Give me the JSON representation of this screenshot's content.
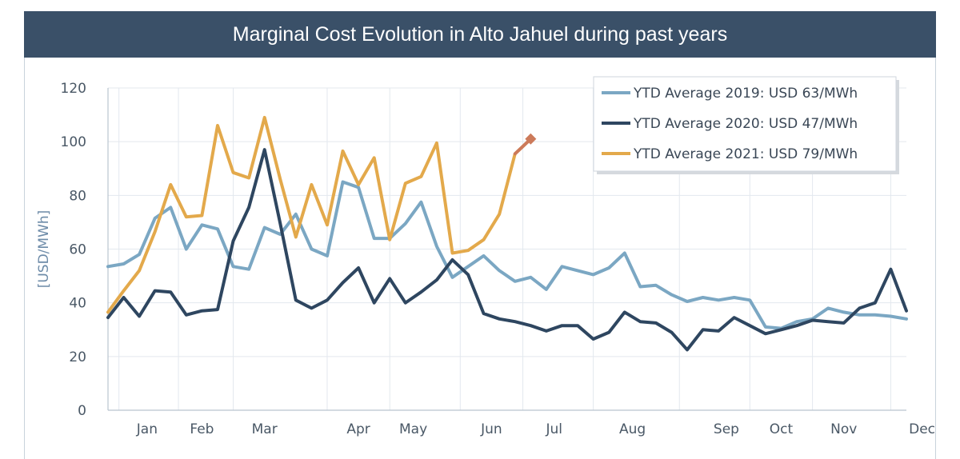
{
  "chart_data": {
    "type": "line",
    "title": "Marginal Cost Evolution in Alto Jahuel during past years",
    "ylabel": "[USD/MWh]",
    "xlabel": "",
    "ylim": [
      0,
      120
    ],
    "yticks": [
      0,
      20,
      40,
      60,
      80,
      100,
      120
    ],
    "week_count": 52,
    "month_labels": [
      {
        "label": "Jan",
        "week": 2.5
      },
      {
        "label": "Feb",
        "week": 6
      },
      {
        "label": "Mar",
        "week": 10
      },
      {
        "label": "Apr",
        "week": 16
      },
      {
        "label": "May",
        "week": 19.5
      },
      {
        "label": "Jun",
        "week": 24.5
      },
      {
        "label": "Jul",
        "week": 28.5
      },
      {
        "label": "Aug",
        "week": 33.5
      },
      {
        "label": "Sep",
        "week": 39.5
      },
      {
        "label": "Oct",
        "week": 43
      },
      {
        "label": "Nov",
        "week": 47
      },
      {
        "label": "Dec",
        "week": 52
      }
    ],
    "grid": true,
    "legend_position": "top-right",
    "series": [
      {
        "name": "YTD Average 2019: USD 63/MWh",
        "color": "#7ba7c3",
        "x": [
          0,
          1,
          2,
          3,
          4,
          5,
          6,
          7,
          8,
          9,
          10,
          11,
          12,
          13,
          14,
          15,
          16,
          17,
          18,
          19,
          20,
          21,
          22,
          23,
          24,
          25,
          26,
          27,
          28,
          29,
          30,
          31,
          32,
          33,
          34,
          35,
          36,
          37,
          38,
          39,
          40,
          41,
          42,
          43,
          44,
          45,
          46,
          47,
          48,
          49,
          50,
          51
        ],
        "values": [
          53.5,
          54.5,
          58,
          71.5,
          75.5,
          60,
          69,
          67.5,
          53.5,
          52.5,
          68,
          65.5,
          73,
          60,
          57.5,
          85,
          83,
          64,
          64,
          69.5,
          77.5,
          61,
          49.5,
          53.5,
          57.5,
          52,
          48,
          49.5,
          45,
          53.5,
          52,
          50.5,
          53,
          58.5,
          46,
          46.5,
          43,
          40.5,
          42,
          41,
          42,
          41,
          31,
          30.5,
          33,
          34,
          38,
          36.5,
          35.5,
          35.5,
          35,
          34
        ]
      },
      {
        "name": "YTD Average 2020: USD 47/MWh",
        "color": "#2e4660",
        "x": [
          0,
          1,
          2,
          3,
          4,
          5,
          6,
          7,
          8,
          9,
          10,
          11,
          12,
          13,
          14,
          15,
          16,
          17,
          18,
          19,
          20,
          21,
          22,
          23,
          24,
          25,
          26,
          27,
          28,
          29,
          30,
          31,
          32,
          33,
          34,
          35,
          36,
          37,
          38,
          39,
          40,
          41,
          42,
          43,
          44,
          45,
          46,
          47,
          48,
          49,
          50,
          51
        ],
        "values": [
          34.5,
          42,
          35,
          44.5,
          44,
          35.5,
          37,
          37.5,
          63,
          75.5,
          97,
          69.5,
          41,
          38,
          41,
          47.5,
          53,
          40,
          49,
          40,
          44,
          48.5,
          56,
          50.5,
          36,
          34,
          33,
          31.5,
          29.5,
          31.5,
          31.5,
          26.5,
          29,
          36.5,
          33,
          32.5,
          29,
          22.5,
          30,
          29.5,
          34.5,
          31.5,
          28.5,
          30,
          31.5,
          33.5,
          33,
          32.5,
          38,
          40,
          52.5,
          37
        ]
      },
      {
        "name": "YTD Average 2021: USD 79/MWh",
        "color": "#e3a94b",
        "x": [
          0,
          1,
          2,
          3,
          4,
          5,
          6,
          7,
          8,
          9,
          10,
          11,
          12,
          13,
          14,
          15,
          16,
          17,
          18,
          19,
          20,
          21,
          22,
          23,
          24,
          25,
          26,
          27
        ],
        "values": [
          36.5,
          44.5,
          52,
          66.5,
          84,
          72,
          72.5,
          106,
          88.5,
          86.5,
          109,
          86,
          64.5,
          84,
          69,
          96.5,
          84,
          94,
          63.5,
          84.5,
          87,
          99.5,
          58.5,
          59.5,
          63.5,
          73,
          95.5,
          101
        ]
      }
    ],
    "annotations": [
      {
        "type": "segment",
        "color": "#cc7a5a",
        "x": [
          26,
          27
        ],
        "values": [
          95.5,
          101
        ],
        "marker": "diamond"
      }
    ]
  }
}
